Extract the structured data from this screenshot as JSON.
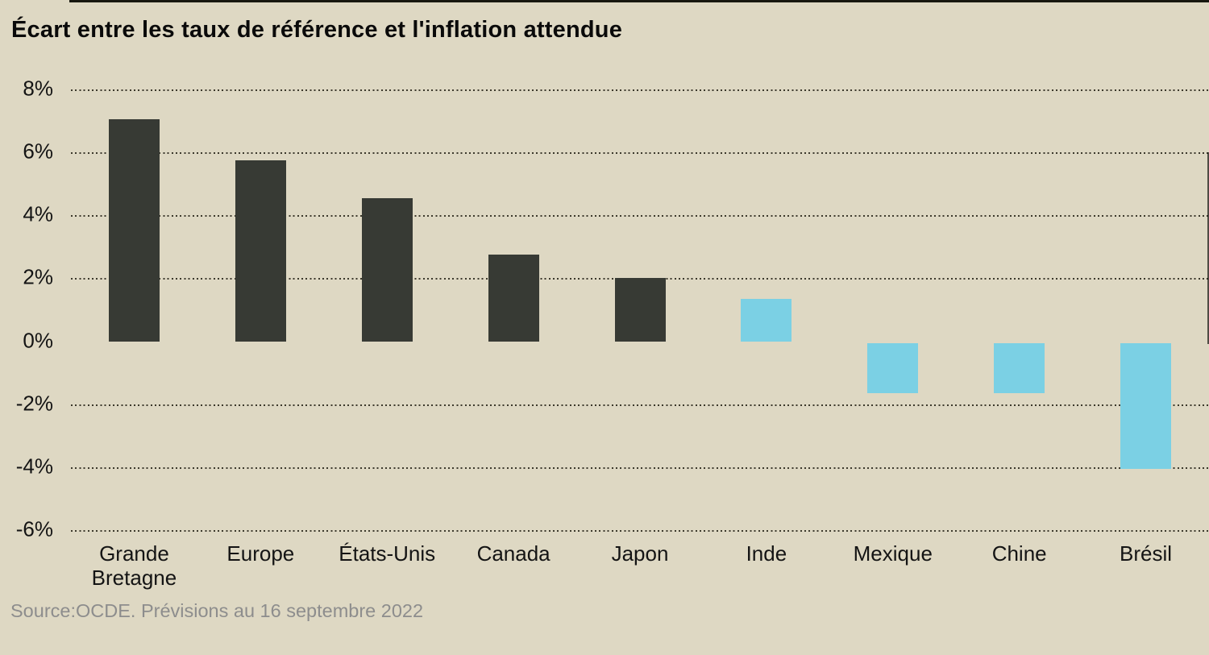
{
  "title": "Écart entre les taux de référence et l'inflation attendue",
  "source": "Source:OCDE. Prévisions au 16 septembre 2022",
  "colors": {
    "background": "#ded8c3",
    "bar_dark": "#373a34",
    "bar_blue": "#7bd0e4",
    "zero_axis": "#17170f",
    "gridline_dot": "#3c392c",
    "tick_label": "#141414",
    "title_text": "#0a0a0a",
    "source_text": "#8d8d8d"
  },
  "chart_data": {
    "type": "bar",
    "title": "Écart entre les taux de référence et l'inflation attendue",
    "categories": [
      "Grande Bretagne",
      "Europe",
      "États-Unis",
      "Canada",
      "Japon",
      "Inde",
      "Mexique",
      "Chine",
      "Brésil"
    ],
    "values": [
      7.05,
      5.75,
      4.55,
      2.75,
      2.0,
      1.35,
      -1.6,
      -1.6,
      -4.0
    ],
    "bar_colors": [
      "#373a34",
      "#373a34",
      "#373a34",
      "#373a34",
      "#373a34",
      "#7bd0e4",
      "#7bd0e4",
      "#7bd0e4",
      "#7bd0e4"
    ],
    "unit": "%",
    "y_ticks": [
      "8%",
      "6%",
      "4%",
      "2%",
      "0%",
      "-2%",
      "-4%",
      "-6%"
    ],
    "y_tick_values": [
      8,
      6,
      4,
      2,
      0,
      -2,
      -4,
      -6
    ],
    "ylim": [
      -6,
      8
    ],
    "grid": "horizontal-dotted",
    "legend": "none",
    "source_note": "Source:OCDE. Prévisions au 16 septembre 2022"
  }
}
